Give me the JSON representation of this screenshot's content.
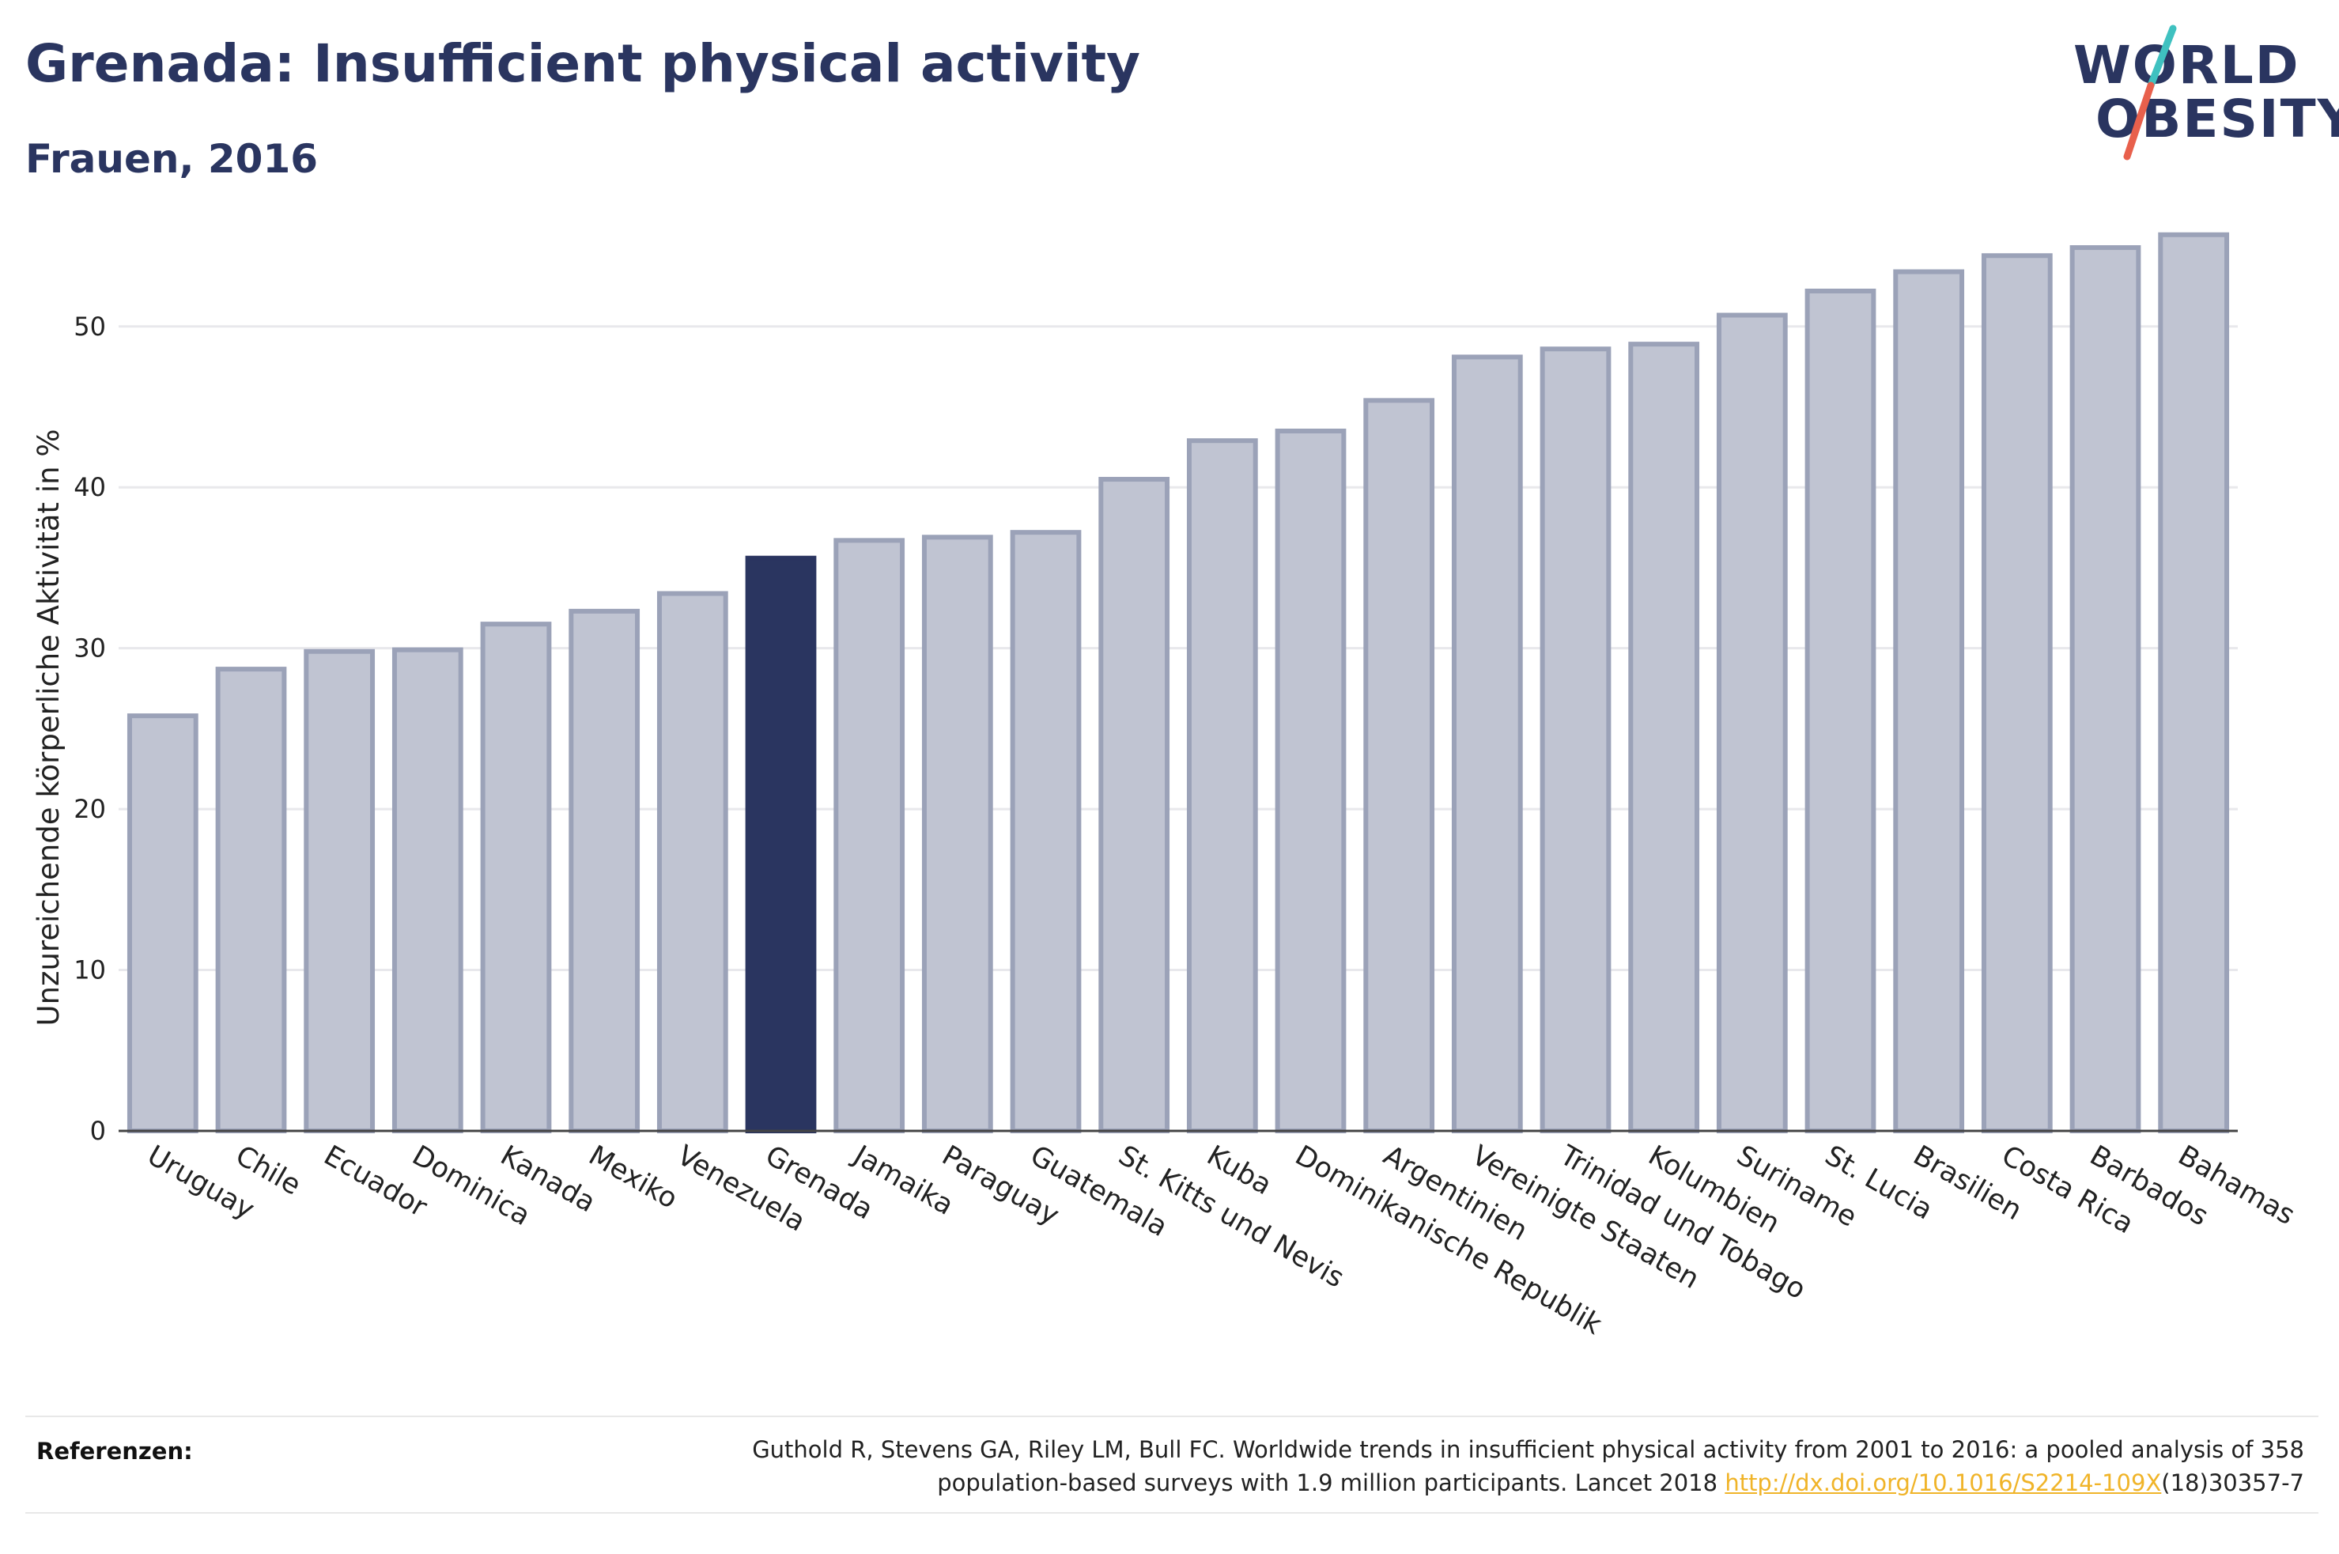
{
  "header": {
    "title": "Grenada: Insufficient physical activity",
    "subtitle": "Frauen, 2016"
  },
  "logo": {
    "line1": "WORLD",
    "line2": "OBESITY",
    "slash_color_top": "#3fc1c0",
    "slash_color_bottom": "#e8604c"
  },
  "colors": {
    "highlight": "#2a3560",
    "bar_fill": "#c0c4d2",
    "bar_stroke": "#9ba2b8",
    "grid": "#e8e8ec"
  },
  "chart_data": {
    "type": "bar",
    "categories": [
      "Uruguay",
      "Chile",
      "Ecuador",
      "Dominica",
      "Kanada",
      "Mexiko",
      "Venezuela",
      "Grenada",
      "Jamaika",
      "Paraguay",
      "Guatemala",
      "St. Kitts und Nevis",
      "Kuba",
      "Dominikanische Republik",
      "Argentinien",
      "Vereinigte Staaten",
      "Trinidad und Tobago",
      "Kolumbien",
      "Suriname",
      "St. Lucia",
      "Brasilien",
      "Costa Rica",
      "Barbados",
      "Bahamas"
    ],
    "values": [
      25.8,
      28.7,
      29.8,
      29.9,
      31.5,
      32.3,
      33.4,
      35.6,
      36.7,
      36.9,
      37.2,
      40.5,
      42.9,
      43.5,
      45.4,
      48.1,
      48.6,
      48.9,
      50.7,
      52.2,
      53.4,
      54.4,
      54.9,
      55.7
    ],
    "highlight": "Grenada",
    "title": "Grenada: Insufficient physical activity",
    "subtitle": "Frauen, 2016",
    "xlabel": "",
    "ylabel": "Unzureichende körperliche Aktivität in %",
    "ylim": [
      0,
      58
    ],
    "yticks": [
      0,
      10,
      20,
      30,
      40,
      50
    ],
    "grid": true,
    "legend": "none"
  },
  "references": {
    "label": "Referenzen:",
    "text_line1": "Guthold R, Stevens GA, Riley LM, Bull FC. Worldwide trends in insufficient physical activity from 2001 to 2016: a pooled analysis of 358",
    "text_line2_before": "population-based surveys with 1.9 million participants. Lancet 2018 ",
    "link_text": "http://dx.doi.org/10.1016/S2214-109X",
    "text_line2_after": "(18)30357-7"
  }
}
